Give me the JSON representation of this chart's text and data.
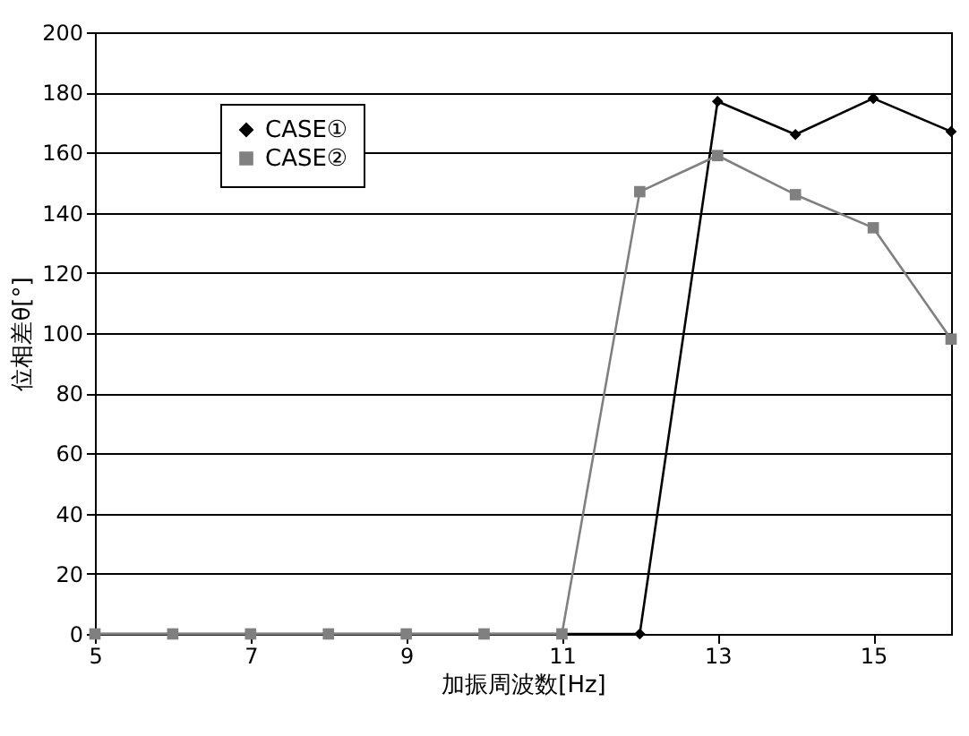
{
  "chart_data": {
    "type": "line",
    "xlabel": "加振周波数[Hz]",
    "ylabel": "位相差θ[°]",
    "x": [
      5,
      6,
      7,
      8,
      9,
      10,
      11,
      12,
      13,
      14,
      15,
      16
    ],
    "xlim": [
      5,
      16
    ],
    "xticks": [
      5,
      7,
      9,
      11,
      13,
      15
    ],
    "ylim": [
      0,
      200
    ],
    "yticks": [
      0,
      20,
      40,
      60,
      80,
      100,
      120,
      140,
      160,
      180,
      200
    ],
    "grid": "y",
    "legend": "top left",
    "line_style": "solid",
    "series": [
      {
        "name": "CASE①",
        "color": "#000000",
        "marker": "diamond",
        "values": [
          0,
          0,
          0,
          0,
          0,
          0,
          0,
          0,
          177,
          166,
          178,
          167
        ]
      },
      {
        "name": "CASE②",
        "color": "#808080",
        "marker": "square",
        "values": [
          0,
          0,
          0,
          0,
          0,
          0,
          0,
          147,
          159,
          146,
          135,
          98
        ]
      }
    ]
  }
}
